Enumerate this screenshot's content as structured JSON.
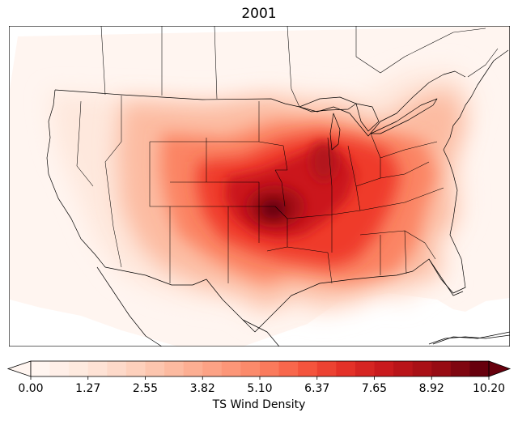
{
  "title": "2001",
  "colorbar": {
    "label": "TS Wind Density",
    "ticks": [
      "0.00",
      "1.27",
      "2.55",
      "3.82",
      "5.10",
      "6.37",
      "7.65",
      "8.92",
      "10.20"
    ],
    "min": 0,
    "max": 10.2,
    "levels": 24,
    "colors": [
      "#fff5f0",
      "#fee8dd",
      "#fdd4c2",
      "#fcbba1",
      "#fca082",
      "#fb8464",
      "#f6573f",
      "#e32f27",
      "#c3161b",
      "#9e0d14",
      "#67000d"
    ]
  },
  "map": {
    "region": "continental-united-states",
    "colormap": "Reds"
  }
}
